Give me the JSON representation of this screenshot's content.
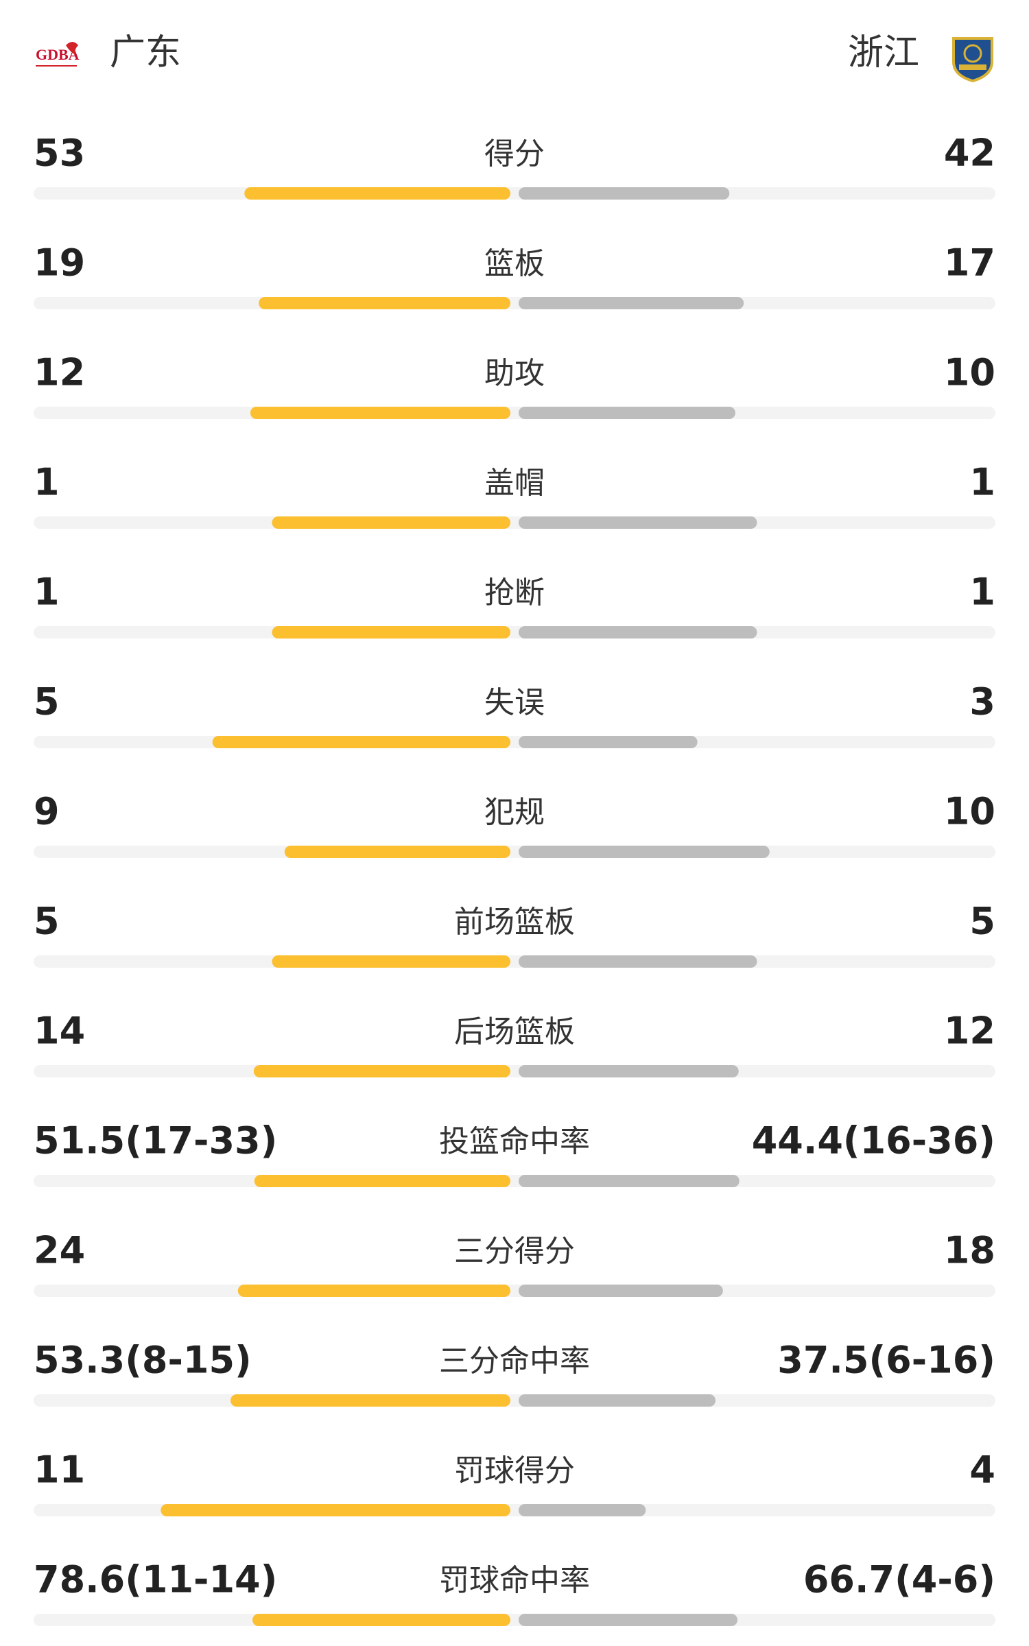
{
  "header": {
    "home_logo": "GDBA",
    "home": "广东",
    "away": "浙江"
  },
  "rows": [
    {
      "label": "得分",
      "home": 53,
      "away": 42
    },
    {
      "label": "篮板",
      "home": 19,
      "away": 17
    },
    {
      "label": "助攻",
      "home": 12,
      "away": 10
    },
    {
      "label": "盖帽",
      "home": 1,
      "away": 1
    },
    {
      "label": "抢断",
      "home": 1,
      "away": 1
    },
    {
      "label": "失误",
      "home": 5,
      "away": 3
    },
    {
      "label": "犯规",
      "home": 9,
      "away": 10
    },
    {
      "label": "前场篮板",
      "home": 5,
      "away": 5
    },
    {
      "label": "后场篮板",
      "home": 14,
      "away": 12
    },
    {
      "label": "投篮命中率",
      "home": 51.5,
      "home_label": "51.5(17-33)",
      "away": 44.4,
      "away_label": "44.4(16-36)"
    },
    {
      "label": "三分得分",
      "home": 24,
      "away": 18
    },
    {
      "label": "三分命中率",
      "home": 53.3,
      "home_label": "53.3(8-15)",
      "away": 37.5,
      "away_label": "37.5(6-16)"
    },
    {
      "label": "罚球得分",
      "home": 11,
      "away": 4
    },
    {
      "label": "罚球命中率",
      "home": 78.6,
      "home_label": "78.6(11-14)",
      "away": 66.7,
      "away_label": "66.7(4-6)"
    }
  ]
}
